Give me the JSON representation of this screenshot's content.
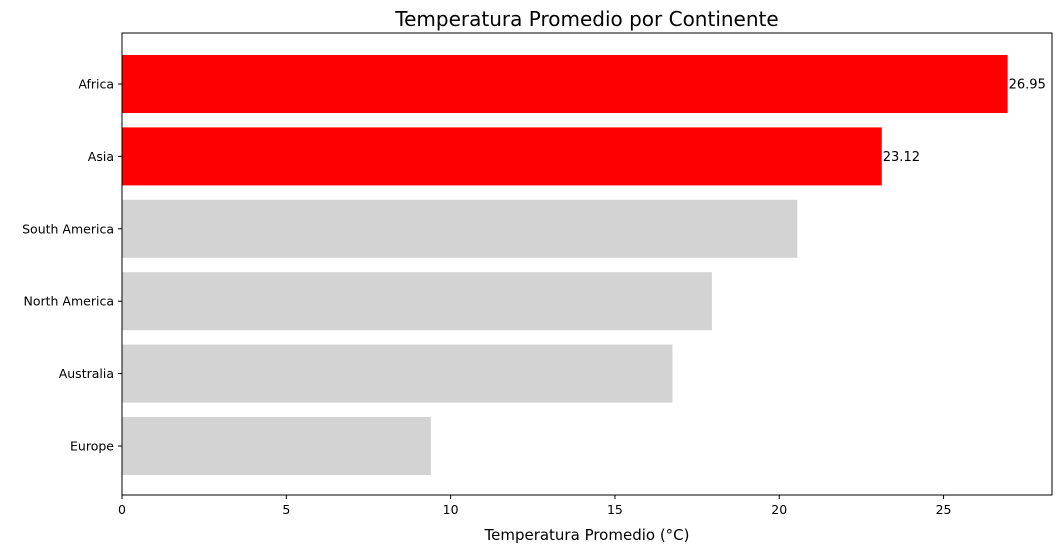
{
  "chart_data": {
    "type": "bar",
    "orientation": "horizontal",
    "title": "Temperatura Promedio por Continente",
    "xlabel": "Temperatura Promedio (°C)",
    "ylabel": "",
    "xlim": [
      0,
      28.3
    ],
    "xticks": [
      0,
      5,
      10,
      15,
      20,
      25
    ],
    "grid": false,
    "categories": [
      "Africa",
      "Asia",
      "South America",
      "North America",
      "Australia",
      "Europe"
    ],
    "values": [
      26.95,
      23.12,
      20.55,
      17.95,
      16.75,
      9.4
    ],
    "value_labels": [
      "26.95",
      "23.12",
      null,
      null,
      null,
      null
    ],
    "bar_colors": [
      "#ff0000",
      "#ff0000",
      "#d3d3d3",
      "#d3d3d3",
      "#d3d3d3",
      "#d3d3d3"
    ],
    "axis_color": "#000000"
  }
}
